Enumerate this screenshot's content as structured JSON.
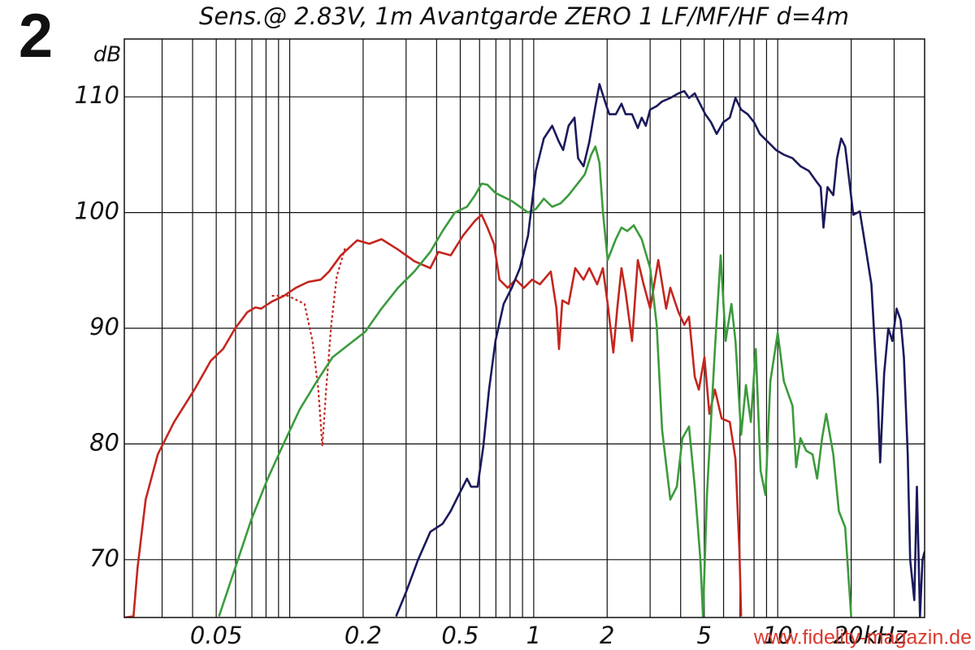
{
  "chart_data": {
    "type": "line",
    "figure_number": "2",
    "title": "Sens.@ 2.83V, 1m Avantgarde ZERO 1 LF/MF/HF d=4m",
    "y_label": "dB",
    "watermark": "www.fidelity-magazin.de",
    "x_scale": "log",
    "grid": true,
    "xlim": [
      0.021,
      40
    ],
    "ylim": [
      65,
      115
    ],
    "yticks": [
      70,
      80,
      90,
      100,
      110
    ],
    "xticks": [
      0.05,
      0.2,
      0.5,
      1,
      2,
      5,
      10,
      {
        "value": 20,
        "label": "20kHz"
      }
    ],
    "xgrid": [
      0.03,
      0.04,
      0.05,
      0.06,
      0.07,
      0.08,
      0.09,
      0.1,
      0.2,
      0.3,
      0.4,
      0.5,
      0.6,
      0.7,
      0.8,
      0.9,
      1,
      2,
      3,
      4,
      5,
      6,
      7,
      8,
      9,
      10,
      20,
      30
    ],
    "series": [
      {
        "color": "#c4261f",
        "line_style": "solid",
        "x": [
          0.021,
          0.0229,
          0.0238,
          0.0257,
          0.0288,
          0.0336,
          0.0407,
          0.0475,
          0.0533,
          0.0598,
          0.0671,
          0.0724,
          0.0764,
          0.0845,
          0.0948,
          0.106,
          0.119,
          0.134,
          0.145,
          0.162,
          0.189,
          0.212,
          0.238,
          0.278,
          0.324,
          0.377,
          0.407,
          0.457,
          0.513,
          0.575,
          0.612,
          0.646,
          0.687,
          0.724,
          0.782,
          0.845,
          0.912,
          0.985,
          1.06,
          1.175,
          1.24,
          1.27,
          1.31,
          1.39,
          1.48,
          1.6,
          1.69,
          1.82,
          1.92,
          2.01,
          2.12,
          2.2,
          2.29,
          2.38,
          2.53,
          2.67,
          2.82,
          3.0,
          3.24,
          3.49,
          3.63,
          3.92,
          4.14,
          4.33,
          4.57,
          4.75,
          5.01,
          5.25,
          5.53,
          5.89,
          6.36,
          6.71,
          6.97,
          7.08
        ],
        "values": [
          65.0,
          65.1,
          69.3,
          75.2,
          79.1,
          81.9,
          84.7,
          87.2,
          88.2,
          90.0,
          91.4,
          91.8,
          91.7,
          92.3,
          92.8,
          93.5,
          94.0,
          94.2,
          94.9,
          96.3,
          97.6,
          97.3,
          97.7,
          96.8,
          95.8,
          95.2,
          96.6,
          96.3,
          98.0,
          99.3,
          99.8,
          98.7,
          97.3,
          94.2,
          93.5,
          94.2,
          93.5,
          94.2,
          93.8,
          94.9,
          91.7,
          88.2,
          92.4,
          92.1,
          95.2,
          94.2,
          95.2,
          93.8,
          95.2,
          92.1,
          87.9,
          91.7,
          95.2,
          93.1,
          88.9,
          95.9,
          93.8,
          91.7,
          95.9,
          91.7,
          93.5,
          91.4,
          90.3,
          91.0,
          85.8,
          84.7,
          87.5,
          82.6,
          84.7,
          82.2,
          81.9,
          78.7,
          70.7,
          65.1
        ]
      },
      {
        "color": "#c4261f",
        "line_style": "dotted",
        "x": [
          0.0845,
          0.0985,
          0.115,
          0.124,
          0.131,
          0.136,
          0.141,
          0.148,
          0.156,
          0.169
        ],
        "values": [
          92.8,
          92.8,
          92.1,
          88.9,
          84.7,
          79.8,
          84.7,
          90.3,
          94.5,
          97.0
        ]
      },
      {
        "color": "#3c9b3c",
        "line_style": "solid",
        "x": [
          0.0513,
          0.0598,
          0.0697,
          0.0813,
          0.0948,
          0.11,
          0.129,
          0.15,
          0.175,
          0.204,
          0.238,
          0.278,
          0.324,
          0.377,
          0.423,
          0.475,
          0.533,
          0.575,
          0.612,
          0.646,
          0.697,
          0.813,
          0.948,
          1.02,
          1.1,
          1.19,
          1.29,
          1.39,
          1.5,
          1.62,
          1.72,
          1.79,
          1.86,
          1.92,
          2.01,
          2.17,
          2.29,
          2.42,
          2.57,
          2.77,
          3.0,
          3.19,
          3.36,
          3.63,
          3.86,
          4.07,
          4.33,
          4.57,
          4.82,
          4.94,
          5.13,
          5.53,
          5.84,
          6.12,
          6.46,
          6.71,
          7.08,
          7.41,
          7.76,
          8.13,
          8.51,
          8.91,
          9.33,
          10.0,
          10.6,
          11.5,
          11.9,
          12.4,
          13.1,
          13.9,
          14.5,
          15.2,
          15.8,
          16.9,
          17.8,
          18.9,
          20.0
        ],
        "values": [
          65.1,
          69.3,
          73.5,
          77.0,
          80.1,
          83.0,
          85.4,
          87.5,
          88.6,
          89.7,
          91.7,
          93.5,
          94.9,
          96.6,
          98.4,
          100.0,
          100.5,
          101.5,
          102.5,
          102.4,
          101.7,
          101.0,
          100.0,
          100.3,
          101.2,
          100.5,
          100.8,
          101.5,
          102.4,
          103.3,
          105.0,
          105.7,
          104.3,
          100.1,
          95.9,
          97.7,
          98.7,
          98.4,
          98.9,
          97.7,
          95.2,
          90.3,
          81.2,
          75.2,
          76.3,
          80.5,
          81.5,
          76.3,
          70.0,
          65.1,
          75.6,
          88.2,
          96.3,
          88.9,
          92.1,
          88.9,
          80.8,
          85.1,
          81.9,
          88.2,
          77.7,
          75.6,
          85.4,
          89.6,
          85.4,
          83.3,
          78.0,
          80.5,
          79.4,
          79.1,
          77.0,
          80.5,
          82.6,
          79.1,
          74.2,
          72.8,
          65.1
        ]
      },
      {
        "color": "#1b1a5c",
        "line_style": "solid",
        "x": [
          0.273,
          0.3,
          0.336,
          0.377,
          0.423,
          0.457,
          0.493,
          0.533,
          0.554,
          0.589,
          0.622,
          0.656,
          0.697,
          0.753,
          0.813,
          0.878,
          0.948,
          1.02,
          1.1,
          1.19,
          1.27,
          1.32,
          1.39,
          1.47,
          1.52,
          1.6,
          1.69,
          1.79,
          1.86,
          1.96,
          2.04,
          2.17,
          2.29,
          2.38,
          2.53,
          2.67,
          2.77,
          2.88,
          3.0,
          3.19,
          3.36,
          3.63,
          3.92,
          4.14,
          4.33,
          4.57,
          4.75,
          5.05,
          5.33,
          5.62,
          5.98,
          6.36,
          6.71,
          7.08,
          7.53,
          8.0,
          8.45,
          9.12,
          9.85,
          10.6,
          11.5,
          12.4,
          13.4,
          14.5,
          15.0,
          15.4,
          16.0,
          16.9,
          17.5,
          18.2,
          18.9,
          19.6,
          20.4,
          21.7,
          22.9,
          24.2,
          25.7,
          26.3,
          27.3,
          28.4,
          29.5,
          30.7,
          31.9,
          32.9,
          34.1,
          34.9,
          36.3,
          37.2,
          38.3,
          39.2,
          40
        ],
        "values": [
          65.1,
          67.2,
          70.0,
          72.4,
          73.1,
          74.2,
          75.6,
          77.0,
          76.3,
          76.3,
          79.8,
          84.7,
          88.9,
          92.1,
          93.5,
          95.2,
          98.0,
          103.6,
          106.4,
          107.5,
          106.1,
          105.4,
          107.5,
          108.2,
          104.7,
          104.0,
          106.1,
          109.2,
          111.1,
          109.6,
          108.5,
          108.5,
          109.4,
          108.5,
          108.5,
          107.3,
          108.2,
          107.5,
          108.9,
          109.2,
          109.6,
          109.9,
          110.3,
          110.5,
          109.9,
          110.3,
          109.6,
          108.5,
          107.8,
          106.8,
          107.8,
          108.2,
          109.9,
          108.9,
          108.5,
          107.8,
          106.8,
          106.1,
          105.4,
          105.0,
          104.7,
          104.0,
          103.6,
          102.6,
          102.2,
          98.7,
          102.2,
          101.5,
          104.7,
          106.4,
          105.7,
          102.9,
          99.8,
          100.1,
          97.0,
          93.8,
          84.0,
          78.4,
          86.1,
          90.0,
          88.9,
          91.7,
          90.7,
          87.5,
          79.1,
          70.0,
          66.5,
          76.3,
          65.1,
          70.0,
          70.7
        ]
      }
    ]
  }
}
